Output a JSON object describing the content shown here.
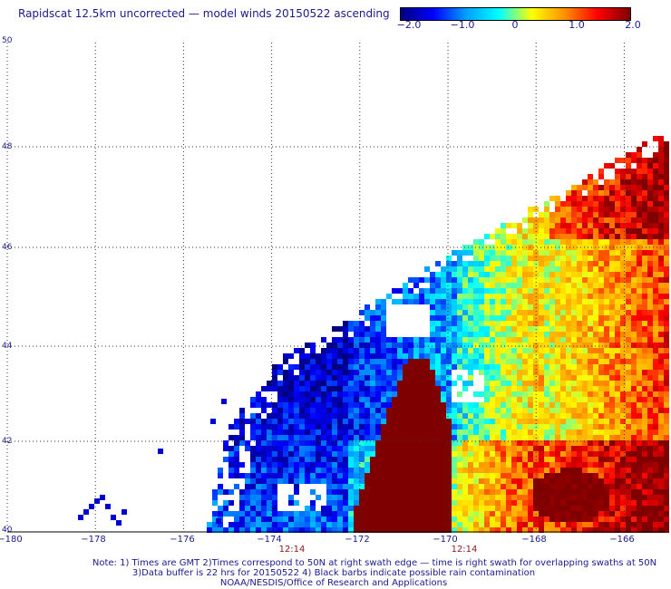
{
  "title": "Rapidscat 12.5km uncorrected — model winds 20150522 ascending",
  "colorbar": {
    "labels": [
      "−2.0",
      "−1.0",
      "0",
      "1.0",
      "2.0"
    ],
    "stops": [
      "#00007f",
      "#0000ff",
      "#00a0ff",
      "#00ffff",
      "#ffff00",
      "#ff9000",
      "#ff0000",
      "#7f0000"
    ]
  },
  "map": {
    "lon_range": [
      -180,
      -164.8
    ],
    "lat_range": [
      40,
      50
    ],
    "lat_ticks": [
      "50",
      "48",
      "46",
      "44",
      "42",
      "40"
    ],
    "lon_ticks": [
      "−180",
      "−178",
      "−176",
      "−174",
      "−172",
      "−170",
      "−168",
      "−166"
    ],
    "times": [
      {
        "label": "12:14",
        "lon": -173.0
      },
      {
        "label": "12:14",
        "lon": -170.0
      }
    ]
  },
  "notes": {
    "line1": "Note: 1) Times are GMT 2)Times correspond to 50N at right swath edge — time is right swath for overlapping swaths at 50N",
    "line2": "3)Data buffer is 22 hrs for 20150522 4) Black barbs indicate possible rain contamination",
    "line3": "NOAA/NESDIS/Office of Research and Applications"
  }
}
